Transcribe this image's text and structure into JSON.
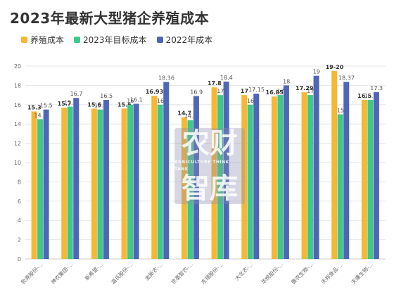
{
  "title": "2023年最新大型猪企养殖成本",
  "colors": {
    "cost": "#f7b733",
    "target2023": "#3ec98a",
    "cost2022": "#4f66b8"
  },
  "watermark": {
    "line1": "农财",
    "line2": "AGRICULTURE THINK TANK",
    "line3": "智库"
  },
  "chart_data": {
    "type": "bar",
    "categories": [
      "牧原股份-...",
      "神农集团-...",
      "新希望-...",
      "温氏股份-...",
      "金新农-...",
      "京基智农-...",
      "东瑞股份-...",
      "大北农-...",
      "华统股份-...",
      "傲农生物-...",
      "天邦食品-...",
      "天康生物-..."
    ],
    "series": [
      {
        "name": "养殖成本",
        "values": [
          15.3,
          15.7,
          15.6,
          15.6,
          16.93,
          14.7,
          17.8,
          17,
          16.85,
          17.29,
          19.5,
          16.5
        ],
        "labels": [
          "15.3",
          "15.7",
          "15.6",
          "15.6",
          "16.93",
          "14.7",
          "17.8",
          "17",
          "16.85",
          "17.29",
          "19-20",
          "16.5"
        ]
      },
      {
        "name": "2023年目标成本",
        "values": [
          14.5,
          15.8,
          15.5,
          16,
          16,
          14.4,
          17,
          16,
          17,
          17,
          15,
          16.5
        ],
        "labels": [
          "14.5",
          "15.8",
          "15.5",
          "16",
          "16",
          "14.4",
          "17",
          "16",
          "17",
          "17",
          "15",
          "16.5"
        ]
      },
      {
        "name": "2022年成本",
        "values": [
          15.5,
          16.7,
          16.5,
          16.1,
          18.36,
          16.9,
          18.4,
          17.15,
          18,
          19,
          18.37,
          17.3
        ],
        "labels": [
          "15.5",
          "16.7",
          "16.5",
          "16.1",
          "18.36",
          "16.9",
          "18.4",
          "17.15",
          "18",
          "19",
          "18.37",
          "17.3"
        ]
      }
    ],
    "yticks": [
      0,
      2,
      4,
      6,
      8,
      10,
      12,
      14,
      16,
      18,
      20
    ],
    "ylim": [
      0,
      20
    ],
    "grid": true,
    "legend_position": "top-left"
  }
}
